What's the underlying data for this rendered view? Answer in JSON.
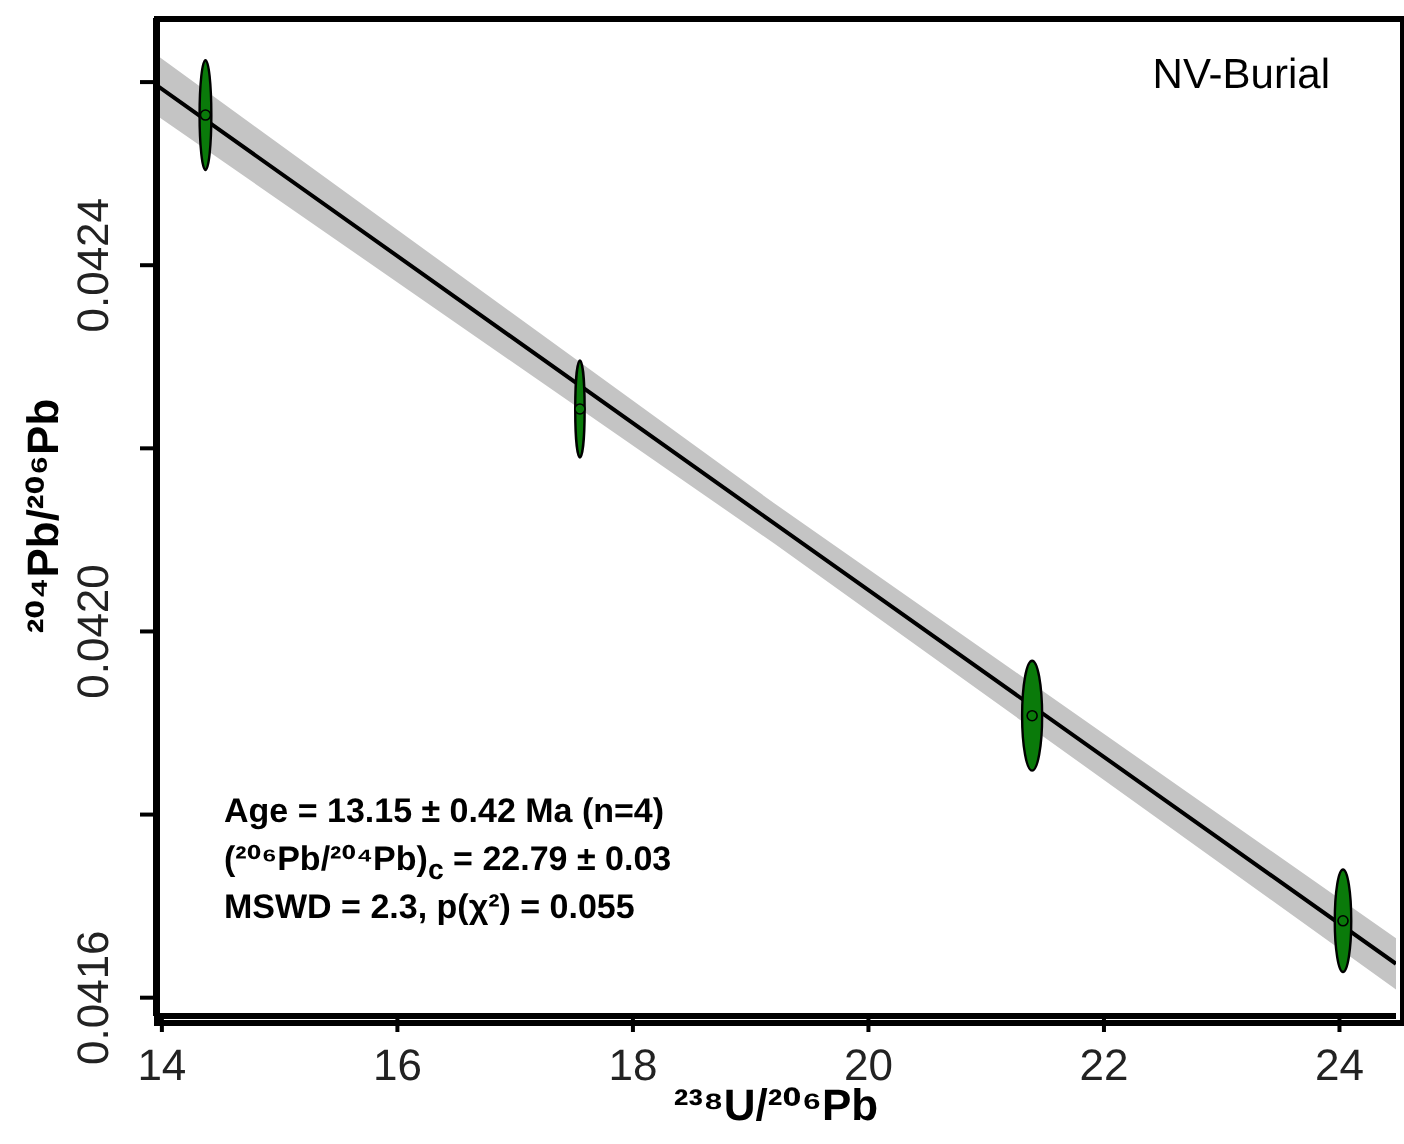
{
  "chart_data": {
    "type": "scatter",
    "xlabel": "²³⁸U/²⁰⁶Pb",
    "ylabel": "²⁰⁴Pb/²⁰⁶Pb",
    "annotations": [
      "NV-Burial",
      "Age = 13.15 ± 0.42 Ma (n=4)",
      "(²⁰⁶Pb/²⁰⁴Pb)$_{c}$ = 22.79 ± 0.03",
      "MSWD = 2.3, p(χ²) = 0.055"
    ],
    "xlim": [
      13.95,
      24.48
    ],
    "xticks": [
      14,
      16,
      18,
      20,
      22,
      24
    ],
    "ylim": [
      0.04158,
      0.04267
    ],
    "yticks": [
      0.0416,
      {
        "value": 0.0418,
        "label": null
      },
      {
        "value": 0.042,
        "label": "0.0420"
      },
      {
        "value": 0.0422,
        "label": null
      },
      0.0424,
      {
        "value": 0.0426,
        "label": null
      }
    ],
    "series": [
      {
        "type": "line",
        "color": "#000000",
        "x": [
          13.95,
          19.2,
          24.48
        ],
        "values": [
          0.042597,
          0.042118,
          0.041637
        ],
        "lower": [
          0.042564,
          0.042096,
          0.041609
        ],
        "upper": [
          0.04263,
          0.04214,
          0.041665
        ]
      },
      {
        "type": "scatter",
        "color": "#0a7a0a",
        "x": [
          14.37,
          17.55,
          21.39,
          24.03
        ],
        "values": [
          0.042564,
          0.042243,
          0.041908,
          0.041684
        ],
        "errors": [
          6e-05,
          5.3e-05,
          6e-05,
          5.6e-05
        ],
        "xerrors": [
          0.05,
          0.04,
          0.085,
          0.07
        ]
      }
    ]
  }
}
